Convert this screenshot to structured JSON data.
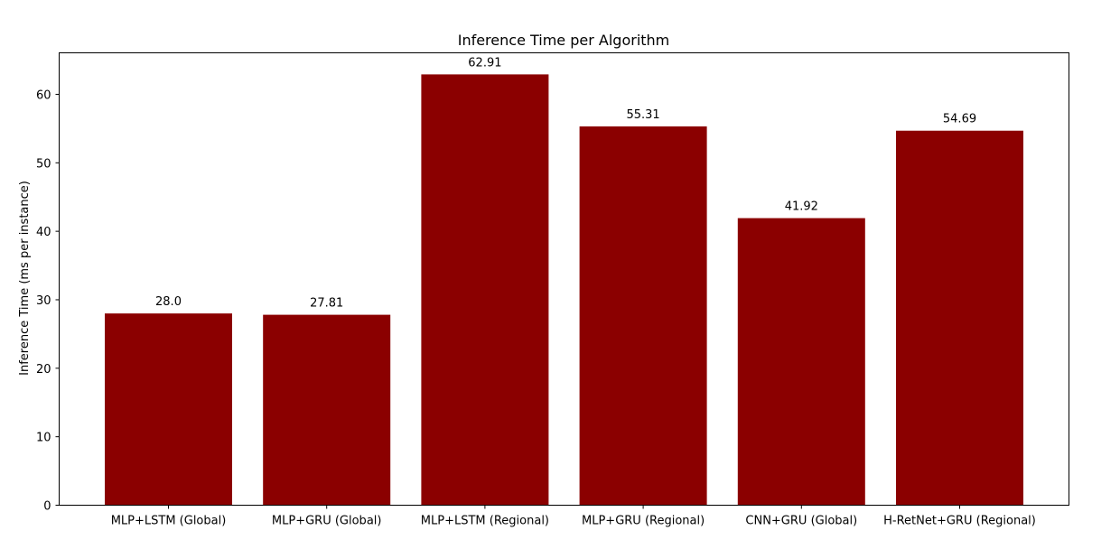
{
  "chart_data": {
    "type": "bar",
    "title": "Inference Time per Algorithm",
    "xlabel": "",
    "ylabel": "Inference Time (ms per instance)",
    "categories": [
      "MLP+LSTM (Global)",
      "MLP+GRU (Global)",
      "MLP+LSTM (Regional)",
      "MLP+GRU (Regional)",
      "CNN+GRU (Global)",
      "H-RetNet+GRU (Regional)"
    ],
    "values": [
      28.0,
      27.81,
      62.91,
      55.31,
      41.92,
      54.69
    ],
    "value_labels": [
      "28.0",
      "27.81",
      "62.91",
      "55.31",
      "41.92",
      "54.69"
    ],
    "ylim": [
      0,
      66.06
    ],
    "yticks": [
      0,
      10,
      20,
      30,
      40,
      50,
      60
    ],
    "grid": false,
    "bar_color": "#8b0000"
  }
}
